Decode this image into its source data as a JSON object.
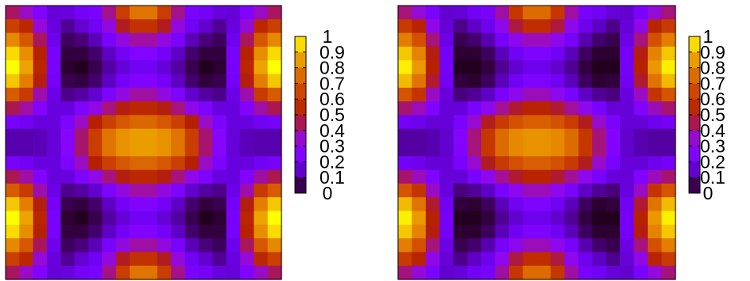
{
  "chart_data": [
    {
      "type": "heatmap",
      "grid_size": [
        20,
        20
      ],
      "color_range": [
        0,
        1
      ],
      "colormap": "gnuplot",
      "colorbar_ticks": [
        "0",
        "0.1",
        "0.2",
        "0.3",
        "0.4",
        "0.5",
        "0.6",
        "0.7",
        "0.8",
        "0.9",
        "1"
      ],
      "colorbar_levels": [
        0,
        0.1,
        0.2,
        0.3,
        0.4,
        0.5,
        0.6,
        0.7,
        0.8,
        0.9,
        1
      ],
      "values": [
        [
          0.44,
          0.36,
          0.25,
          0.16,
          0.17,
          0.21,
          0.23,
          0.41,
          0.62,
          0.77,
          0.77,
          0.62,
          0.41,
          0.23,
          0.21,
          0.17,
          0.16,
          0.25,
          0.36,
          0.44
        ],
        [
          0.63,
          0.54,
          0.34,
          0.17,
          0.1,
          0.15,
          0.2,
          0.33,
          0.48,
          0.58,
          0.58,
          0.48,
          0.33,
          0.2,
          0.15,
          0.1,
          0.17,
          0.34,
          0.54,
          0.63
        ],
        [
          0.81,
          0.7,
          0.44,
          0.19,
          0.06,
          0.08,
          0.13,
          0.23,
          0.33,
          0.39,
          0.39,
          0.33,
          0.23,
          0.13,
          0.08,
          0.06,
          0.19,
          0.44,
          0.7,
          0.81
        ],
        [
          0.95,
          0.82,
          0.51,
          0.22,
          0.04,
          0.04,
          0.07,
          0.14,
          0.21,
          0.25,
          0.25,
          0.21,
          0.14,
          0.07,
          0.04,
          0.04,
          0.22,
          0.51,
          0.82,
          0.95
        ],
        [
          1.0,
          0.86,
          0.53,
          0.22,
          0.03,
          0.02,
          0.05,
          0.11,
          0.16,
          0.2,
          0.2,
          0.16,
          0.11,
          0.05,
          0.02,
          0.03,
          0.22,
          0.53,
          0.86,
          1.0
        ],
        [
          0.92,
          0.79,
          0.49,
          0.21,
          0.05,
          0.04,
          0.07,
          0.14,
          0.21,
          0.25,
          0.25,
          0.21,
          0.14,
          0.07,
          0.04,
          0.05,
          0.21,
          0.49,
          0.79,
          0.92
        ],
        [
          0.71,
          0.61,
          0.38,
          0.18,
          0.09,
          0.11,
          0.15,
          0.24,
          0.33,
          0.39,
          0.39,
          0.33,
          0.24,
          0.15,
          0.11,
          0.09,
          0.18,
          0.38,
          0.61,
          0.71
        ],
        [
          0.45,
          0.39,
          0.26,
          0.17,
          0.17,
          0.24,
          0.32,
          0.42,
          0.49,
          0.54,
          0.54,
          0.49,
          0.42,
          0.32,
          0.24,
          0.17,
          0.17,
          0.26,
          0.39,
          0.45
        ],
        [
          0.22,
          0.2,
          0.17,
          0.17,
          0.24,
          0.36,
          0.5,
          0.63,
          0.7,
          0.74,
          0.74,
          0.7,
          0.63,
          0.5,
          0.36,
          0.24,
          0.17,
          0.17,
          0.2,
          0.22
        ],
        [
          0.12,
          0.12,
          0.13,
          0.16,
          0.27,
          0.43,
          0.62,
          0.77,
          0.83,
          0.85,
          0.85,
          0.83,
          0.77,
          0.62,
          0.43,
          0.27,
          0.16,
          0.13,
          0.12,
          0.12
        ],
        [
          0.12,
          0.12,
          0.13,
          0.16,
          0.27,
          0.43,
          0.62,
          0.77,
          0.83,
          0.85,
          0.85,
          0.83,
          0.77,
          0.62,
          0.43,
          0.27,
          0.16,
          0.13,
          0.12,
          0.12
        ],
        [
          0.22,
          0.2,
          0.17,
          0.17,
          0.24,
          0.36,
          0.5,
          0.63,
          0.7,
          0.74,
          0.74,
          0.7,
          0.63,
          0.5,
          0.36,
          0.24,
          0.17,
          0.17,
          0.2,
          0.22
        ],
        [
          0.45,
          0.39,
          0.26,
          0.17,
          0.17,
          0.24,
          0.32,
          0.42,
          0.49,
          0.54,
          0.54,
          0.49,
          0.42,
          0.32,
          0.24,
          0.17,
          0.17,
          0.26,
          0.39,
          0.45
        ],
        [
          0.71,
          0.61,
          0.38,
          0.18,
          0.09,
          0.11,
          0.15,
          0.24,
          0.33,
          0.39,
          0.39,
          0.33,
          0.24,
          0.15,
          0.11,
          0.09,
          0.18,
          0.38,
          0.61,
          0.71
        ],
        [
          0.92,
          0.79,
          0.49,
          0.21,
          0.05,
          0.04,
          0.07,
          0.14,
          0.21,
          0.25,
          0.25,
          0.21,
          0.14,
          0.07,
          0.04,
          0.05,
          0.21,
          0.49,
          0.79,
          0.92
        ],
        [
          1.0,
          0.86,
          0.53,
          0.22,
          0.03,
          0.02,
          0.05,
          0.11,
          0.16,
          0.2,
          0.2,
          0.16,
          0.11,
          0.05,
          0.02,
          0.03,
          0.22,
          0.53,
          0.86,
          1.0
        ],
        [
          0.95,
          0.82,
          0.51,
          0.22,
          0.04,
          0.04,
          0.07,
          0.14,
          0.21,
          0.25,
          0.25,
          0.21,
          0.14,
          0.07,
          0.04,
          0.04,
          0.22,
          0.51,
          0.82,
          0.95
        ],
        [
          0.81,
          0.7,
          0.44,
          0.19,
          0.06,
          0.08,
          0.13,
          0.23,
          0.33,
          0.39,
          0.39,
          0.33,
          0.23,
          0.13,
          0.08,
          0.06,
          0.19,
          0.44,
          0.7,
          0.81
        ],
        [
          0.63,
          0.54,
          0.34,
          0.17,
          0.1,
          0.15,
          0.2,
          0.33,
          0.48,
          0.58,
          0.58,
          0.48,
          0.33,
          0.2,
          0.15,
          0.1,
          0.17,
          0.34,
          0.54,
          0.63
        ],
        [
          0.44,
          0.36,
          0.25,
          0.16,
          0.17,
          0.21,
          0.23,
          0.41,
          0.62,
          0.77,
          0.77,
          0.62,
          0.41,
          0.23,
          0.21,
          0.17,
          0.16,
          0.25,
          0.36,
          0.44
        ]
      ]
    },
    {
      "type": "heatmap",
      "grid_size": [
        20,
        20
      ],
      "color_range": [
        0,
        1
      ],
      "colormap": "gnuplot",
      "colorbar_ticks": [
        "0",
        "0.1",
        "0.2",
        "0.3",
        "0.4",
        "0.5",
        "0.6",
        "0.7",
        "0.8",
        "0.9",
        "1"
      ],
      "colorbar_levels": [
        0,
        0.1,
        0.2,
        0.3,
        0.4,
        0.5,
        0.6,
        0.7,
        0.8,
        0.9,
        1
      ],
      "values": [
        [
          0.42,
          0.34,
          0.23,
          0.15,
          0.16,
          0.2,
          0.22,
          0.39,
          0.6,
          0.75,
          0.75,
          0.6,
          0.39,
          0.22,
          0.2,
          0.16,
          0.15,
          0.23,
          0.34,
          0.42
        ],
        [
          0.61,
          0.52,
          0.32,
          0.16,
          0.09,
          0.14,
          0.19,
          0.31,
          0.46,
          0.56,
          0.56,
          0.46,
          0.31,
          0.19,
          0.14,
          0.09,
          0.16,
          0.32,
          0.52,
          0.61
        ],
        [
          0.79,
          0.68,
          0.42,
          0.18,
          0.05,
          0.07,
          0.12,
          0.22,
          0.31,
          0.37,
          0.37,
          0.31,
          0.22,
          0.12,
          0.07,
          0.05,
          0.18,
          0.42,
          0.68,
          0.79
        ],
        [
          0.92,
          0.8,
          0.49,
          0.21,
          0.03,
          0.03,
          0.06,
          0.13,
          0.2,
          0.24,
          0.24,
          0.2,
          0.13,
          0.06,
          0.03,
          0.03,
          0.21,
          0.49,
          0.8,
          0.92
        ],
        [
          0.98,
          0.84,
          0.51,
          0.21,
          0.02,
          0.02,
          0.04,
          0.1,
          0.15,
          0.19,
          0.19,
          0.15,
          0.1,
          0.04,
          0.02,
          0.02,
          0.21,
          0.51,
          0.84,
          0.98
        ],
        [
          0.9,
          0.77,
          0.47,
          0.2,
          0.04,
          0.03,
          0.06,
          0.13,
          0.2,
          0.24,
          0.24,
          0.2,
          0.13,
          0.06,
          0.03,
          0.04,
          0.2,
          0.47,
          0.77,
          0.9
        ],
        [
          0.69,
          0.59,
          0.36,
          0.17,
          0.08,
          0.1,
          0.14,
          0.23,
          0.31,
          0.37,
          0.37,
          0.31,
          0.23,
          0.14,
          0.1,
          0.08,
          0.17,
          0.36,
          0.59,
          0.69
        ],
        [
          0.43,
          0.37,
          0.25,
          0.16,
          0.16,
          0.23,
          0.31,
          0.4,
          0.47,
          0.52,
          0.52,
          0.47,
          0.4,
          0.31,
          0.23,
          0.16,
          0.16,
          0.25,
          0.37,
          0.43
        ],
        [
          0.21,
          0.19,
          0.16,
          0.16,
          0.23,
          0.35,
          0.48,
          0.61,
          0.68,
          0.72,
          0.72,
          0.68,
          0.61,
          0.48,
          0.35,
          0.23,
          0.16,
          0.16,
          0.19,
          0.21
        ],
        [
          0.11,
          0.11,
          0.12,
          0.15,
          0.26,
          0.42,
          0.6,
          0.75,
          0.81,
          0.83,
          0.83,
          0.81,
          0.75,
          0.6,
          0.42,
          0.26,
          0.15,
          0.12,
          0.11,
          0.11
        ],
        [
          0.11,
          0.11,
          0.12,
          0.15,
          0.26,
          0.42,
          0.6,
          0.75,
          0.81,
          0.83,
          0.83,
          0.81,
          0.75,
          0.6,
          0.42,
          0.26,
          0.15,
          0.12,
          0.11,
          0.11
        ],
        [
          0.21,
          0.19,
          0.16,
          0.16,
          0.23,
          0.35,
          0.48,
          0.61,
          0.68,
          0.72,
          0.72,
          0.68,
          0.61,
          0.48,
          0.35,
          0.23,
          0.16,
          0.16,
          0.19,
          0.21
        ],
        [
          0.43,
          0.37,
          0.25,
          0.16,
          0.16,
          0.23,
          0.31,
          0.4,
          0.47,
          0.52,
          0.52,
          0.47,
          0.4,
          0.31,
          0.23,
          0.16,
          0.16,
          0.25,
          0.37,
          0.43
        ],
        [
          0.69,
          0.59,
          0.36,
          0.17,
          0.08,
          0.1,
          0.14,
          0.23,
          0.31,
          0.37,
          0.37,
          0.31,
          0.23,
          0.14,
          0.1,
          0.08,
          0.17,
          0.36,
          0.59,
          0.69
        ],
        [
          0.9,
          0.77,
          0.47,
          0.2,
          0.04,
          0.03,
          0.06,
          0.13,
          0.2,
          0.24,
          0.24,
          0.2,
          0.13,
          0.06,
          0.03,
          0.04,
          0.2,
          0.47,
          0.77,
          0.9
        ],
        [
          0.98,
          0.84,
          0.51,
          0.21,
          0.02,
          0.02,
          0.04,
          0.1,
          0.15,
          0.19,
          0.19,
          0.15,
          0.1,
          0.04,
          0.02,
          0.02,
          0.21,
          0.51,
          0.84,
          0.98
        ],
        [
          0.92,
          0.8,
          0.49,
          0.21,
          0.03,
          0.03,
          0.06,
          0.13,
          0.2,
          0.24,
          0.24,
          0.2,
          0.13,
          0.06,
          0.03,
          0.03,
          0.21,
          0.49,
          0.8,
          0.92
        ],
        [
          0.79,
          0.68,
          0.42,
          0.18,
          0.05,
          0.07,
          0.12,
          0.22,
          0.31,
          0.37,
          0.37,
          0.31,
          0.22,
          0.12,
          0.07,
          0.05,
          0.18,
          0.42,
          0.68,
          0.79
        ],
        [
          0.61,
          0.52,
          0.32,
          0.16,
          0.09,
          0.14,
          0.19,
          0.31,
          0.46,
          0.56,
          0.56,
          0.46,
          0.31,
          0.19,
          0.14,
          0.09,
          0.16,
          0.32,
          0.52,
          0.61
        ],
        [
          0.42,
          0.34,
          0.23,
          0.15,
          0.16,
          0.2,
          0.22,
          0.39,
          0.6,
          0.75,
          0.75,
          0.6,
          0.39,
          0.22,
          0.2,
          0.16,
          0.15,
          0.23,
          0.34,
          0.42
        ]
      ]
    }
  ]
}
